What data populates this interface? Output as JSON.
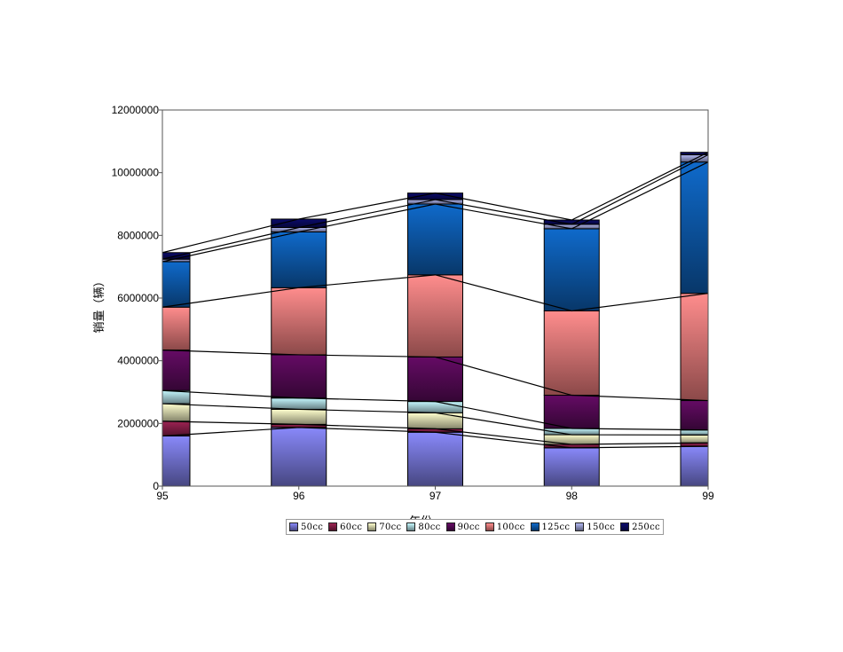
{
  "chart_data": {
    "type": "bar",
    "stacked": true,
    "categories": [
      "95",
      "96",
      "97",
      "98",
      "99"
    ],
    "xlabel": "年份",
    "ylabel": "销量（辆）",
    "ylim": [
      0,
      12000000
    ],
    "yticks": [
      0,
      2000000,
      4000000,
      6000000,
      8000000,
      10000000,
      12000000
    ],
    "grid": false,
    "legend_position": "bottom",
    "series": [
      {
        "name": "50cc",
        "color": "#7a7adf",
        "values": [
          1600000,
          1870000,
          1720000,
          1220000,
          1270000
        ]
      },
      {
        "name": "60cc",
        "color": "#8c1f4a",
        "values": [
          470000,
          100000,
          110000,
          110000,
          110000
        ]
      },
      {
        "name": "70cc",
        "color": "#e6e6b8",
        "values": [
          560000,
          480000,
          510000,
          310000,
          250000
        ]
      },
      {
        "name": "80cc",
        "color": "#b0dde3",
        "values": [
          420000,
          360000,
          360000,
          200000,
          160000
        ]
      },
      {
        "name": "90cc",
        "color": "#5a0a5a",
        "values": [
          1290000,
          1380000,
          1420000,
          1060000,
          940000
        ]
      },
      {
        "name": "100cc",
        "color": "#f07e7e",
        "values": [
          1370000,
          2140000,
          2620000,
          2690000,
          3420000
        ]
      },
      {
        "name": "125cc",
        "color": "#0d5fb5",
        "values": [
          1450000,
          1780000,
          2260000,
          2620000,
          4190000
        ]
      },
      {
        "name": "150cc",
        "color": "#9fa3d8",
        "values": [
          80000,
          140000,
          140000,
          140000,
          230000
        ]
      },
      {
        "name": "250cc",
        "color": "#0a0a60",
        "values": [
          210000,
          270000,
          210000,
          140000,
          80000
        ]
      }
    ]
  }
}
